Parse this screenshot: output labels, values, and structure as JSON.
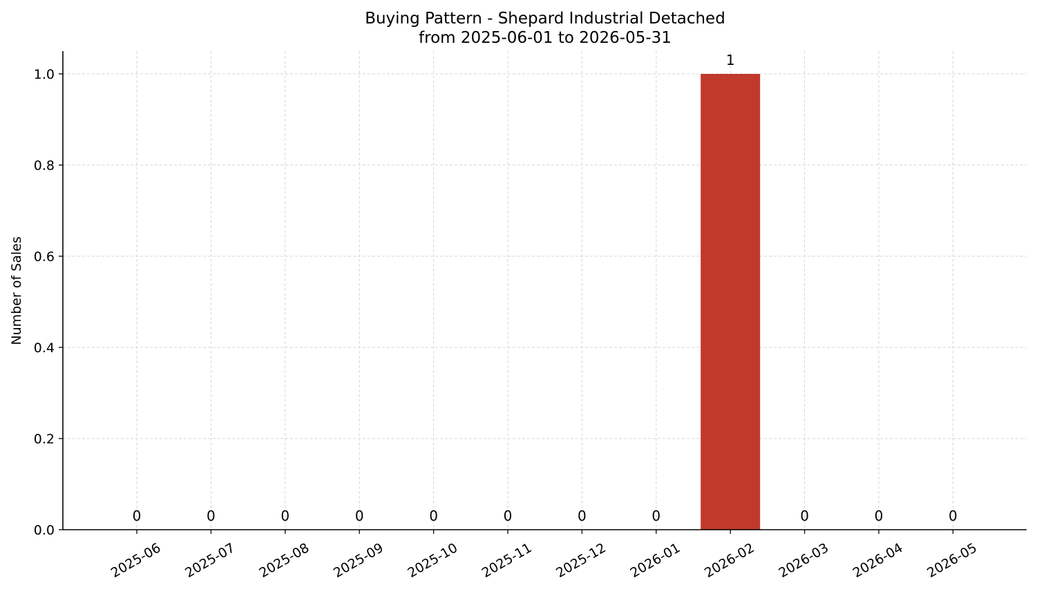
{
  "chart_data": {
    "type": "bar",
    "title_line1": "Buying Pattern - Shepard Industrial Detached",
    "title_line2": "from 2025-06-01 to 2026-05-31",
    "xlabel": "",
    "ylabel": "Number of Sales",
    "categories": [
      "2025-06",
      "2025-07",
      "2025-08",
      "2025-09",
      "2025-10",
      "2025-11",
      "2025-12",
      "2026-01",
      "2026-02",
      "2026-03",
      "2026-04",
      "2026-05"
    ],
    "values": [
      0,
      0,
      0,
      0,
      0,
      0,
      0,
      0,
      1,
      0,
      0,
      0
    ],
    "data_labels": [
      "0",
      "0",
      "0",
      "0",
      "0",
      "0",
      "0",
      "0",
      "1",
      "0",
      "0",
      "0"
    ],
    "ylim": [
      0,
      1.05
    ],
    "yticks": [
      "0.0",
      "0.2",
      "0.4",
      "0.6",
      "0.8",
      "1.0"
    ],
    "grid": true,
    "bar_color": "#c0392b"
  }
}
